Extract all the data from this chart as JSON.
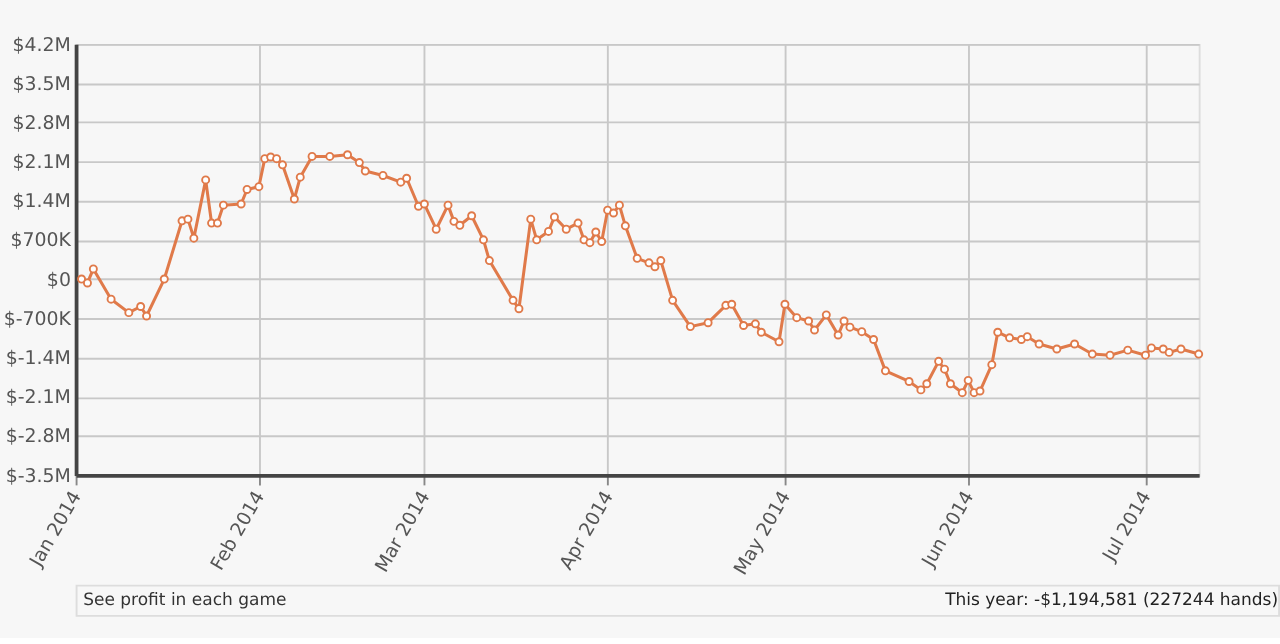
{
  "chart_data": {
    "type": "line",
    "color": "#e07a4a",
    "marker": "circle",
    "line_style": "solid",
    "grid": true,
    "x": [
      "2014-01-02",
      "2014-01-03",
      "2014-01-04",
      "2014-01-07",
      "2014-01-10",
      "2014-01-12",
      "2014-01-13",
      "2014-01-16",
      "2014-01-19",
      "2014-01-20",
      "2014-01-21",
      "2014-01-23",
      "2014-01-24",
      "2014-01-25",
      "2014-01-26",
      "2014-01-29",
      "2014-01-30",
      "2014-02-01",
      "2014-02-02",
      "2014-02-03",
      "2014-02-04",
      "2014-02-05",
      "2014-02-07",
      "2014-02-08",
      "2014-02-10",
      "2014-02-13",
      "2014-02-16",
      "2014-02-18",
      "2014-02-19",
      "2014-02-22",
      "2014-02-25",
      "2014-02-26",
      "2014-02-28",
      "2014-03-01",
      "2014-03-03",
      "2014-03-05",
      "2014-03-06",
      "2014-03-07",
      "2014-03-09",
      "2014-03-11",
      "2014-03-12",
      "2014-03-16",
      "2014-03-17",
      "2014-03-19",
      "2014-03-20",
      "2014-03-22",
      "2014-03-23",
      "2014-03-25",
      "2014-03-27",
      "2014-03-28",
      "2014-03-29",
      "2014-03-30",
      "2014-03-31",
      "2014-04-01",
      "2014-04-02",
      "2014-04-03",
      "2014-04-04",
      "2014-04-06",
      "2014-04-08",
      "2014-04-09",
      "2014-04-10",
      "2014-04-12",
      "2014-04-15",
      "2014-04-18",
      "2014-04-21",
      "2014-04-22",
      "2014-04-24",
      "2014-04-26",
      "2014-04-27",
      "2014-04-30",
      "2014-05-01",
      "2014-05-03",
      "2014-05-05",
      "2014-05-06",
      "2014-05-08",
      "2014-05-10",
      "2014-05-11",
      "2014-05-12",
      "2014-05-14",
      "2014-05-16",
      "2014-05-18",
      "2014-05-22",
      "2014-05-24",
      "2014-05-25",
      "2014-05-27",
      "2014-05-28",
      "2014-05-29",
      "2014-05-31",
      "2014-06-01",
      "2014-06-02",
      "2014-06-03",
      "2014-06-05",
      "2014-06-06",
      "2014-06-08",
      "2014-06-10",
      "2014-06-11",
      "2014-06-13",
      "2014-06-16",
      "2014-06-19",
      "2014-06-22",
      "2014-06-25",
      "2014-06-28",
      "2014-07-01",
      "2014-07-02",
      "2014-07-04",
      "2014-07-05",
      "2014-07-07",
      "2014-07-10"
    ],
    "values": [
      0,
      -70000,
      180000,
      -360000,
      -600000,
      -490000,
      -660000,
      0,
      1040000,
      1070000,
      730000,
      1770000,
      1000000,
      1000000,
      1320000,
      1340000,
      1600000,
      1650000,
      2150000,
      2180000,
      2150000,
      2040000,
      1430000,
      1820000,
      2190000,
      2190000,
      2220000,
      2080000,
      1930000,
      1850000,
      1730000,
      1800000,
      1300000,
      1340000,
      890000,
      1320000,
      1030000,
      960000,
      1130000,
      700000,
      330000,
      -380000,
      -530000,
      1070000,
      700000,
      850000,
      1110000,
      890000,
      1000000,
      700000,
      650000,
      840000,
      670000,
      1230000,
      1180000,
      1320000,
      950000,
      370000,
      290000,
      220000,
      330000,
      -380000,
      -850000,
      -780000,
      -470000,
      -450000,
      -830000,
      -800000,
      -950000,
      -1120000,
      -450000,
      -690000,
      -750000,
      -910000,
      -640000,
      -1000000,
      -750000,
      -860000,
      -940000,
      -1080000,
      -1640000,
      -1830000,
      -1980000,
      -1870000,
      -1470000,
      -1610000,
      -1870000,
      -2030000,
      -1810000,
      -2030000,
      -2000000,
      -1530000,
      -950000,
      -1050000,
      -1080000,
      -1030000,
      -1160000,
      -1250000,
      -1160000,
      -1340000,
      -1360000,
      -1270000,
      -1360000,
      -1230000,
      -1250000,
      -1310000,
      -1250000,
      -1340000
    ],
    "xlim": [
      "2014-01-01",
      "2014-07-10"
    ],
    "xticks": [
      {
        "value": "2014-01-01",
        "label": "Jan 2014"
      },
      {
        "value": "2014-02-01",
        "label": "Feb 2014"
      },
      {
        "value": "2014-03-01",
        "label": "Mar 2014"
      },
      {
        "value": "2014-04-01",
        "label": "Apr 2014"
      },
      {
        "value": "2014-05-01",
        "label": "May 2014"
      },
      {
        "value": "2014-06-01",
        "label": "Jun 2014"
      },
      {
        "value": "2014-07-01",
        "label": "Jul 2014"
      }
    ],
    "ylim": [
      -3500000,
      4200000
    ],
    "yticks": [
      {
        "value": -3500000,
        "label": "$-3.5M"
      },
      {
        "value": -2800000,
        "label": "$-2.8M"
      },
      {
        "value": -2100000,
        "label": "$-2.1M"
      },
      {
        "value": -1400000,
        "label": "$-1.4M"
      },
      {
        "value": -700000,
        "label": "$-700K"
      },
      {
        "value": 0,
        "label": "$0"
      },
      {
        "value": 700000,
        "label": "$700K"
      },
      {
        "value": 1400000,
        "label": "$1.4M"
      },
      {
        "value": 2100000,
        "label": "$2.1M"
      },
      {
        "value": 2800000,
        "label": "$2.8M"
      },
      {
        "value": 3500000,
        "label": "$3.5M"
      },
      {
        "value": 4200000,
        "label": "$4.2M"
      }
    ],
    "annotations": [
      "See profit in each game",
      "This year: -$1,194,581 (227244 hands)"
    ]
  }
}
